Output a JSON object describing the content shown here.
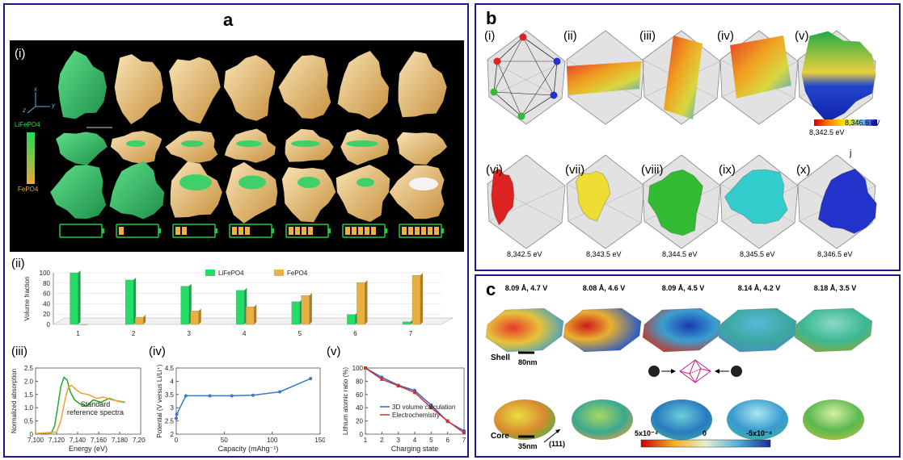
{
  "panel_a": {
    "label": "a",
    "sub_i": "(i)",
    "sub_ii": "(ii)",
    "sub_iii": "(iii)",
    "sub_iv": "(iv)",
    "sub_v": "(v)",
    "legend_top": "LiFePO4",
    "legend_bottom": "FePO4",
    "axes_x": "x",
    "axes_y": "y",
    "axes_z": "z",
    "battery_fill": [
      0,
      1,
      2,
      3,
      4,
      5,
      6
    ],
    "battery_segments": 6
  },
  "chart_ii": {
    "type": "bar",
    "categories": [
      "1",
      "2",
      "3",
      "4",
      "5",
      "6",
      "7"
    ],
    "ylabel": "Volume fraction",
    "yticks": [
      "0",
      "20",
      "40",
      "60",
      "80",
      "100"
    ],
    "ylim": [
      0,
      100
    ],
    "series": [
      {
        "name": "LiFePO4",
        "color": "#22dd66",
        "values": [
          100,
          86,
          74,
          66,
          44,
          19,
          5
        ]
      },
      {
        "name": "FePO4",
        "color": "#e8b040",
        "values": [
          0,
          14,
          26,
          34,
          56,
          81,
          95
        ]
      }
    ]
  },
  "chart_iii": {
    "type": "line",
    "xlabel": "Energy (eV)",
    "ylabel": "Normalized absorption",
    "xticks": [
      "7,100",
      "7,120",
      "7,140",
      "7,160",
      "7,180",
      "7,200"
    ],
    "yticks": [
      "0",
      "0.5",
      "1.0",
      "1.5",
      "2.0",
      "2.5"
    ],
    "xlim": [
      7100,
      7200
    ],
    "ylim": [
      0,
      2.5
    ],
    "annotation_line1": "Standard",
    "annotation_line2": "reference spectra",
    "series": [
      {
        "color": "#22aa22",
        "x": [
          7100,
          7115,
          7118,
          7121,
          7124,
          7127,
          7130,
          7133,
          7137,
          7142,
          7148,
          7155,
          7162,
          7170,
          7178,
          7185
        ],
        "y": [
          0.02,
          0.05,
          0.3,
          1.0,
          1.8,
          2.15,
          2.05,
          1.6,
          1.3,
          1.15,
          1.05,
          1.3,
          1.2,
          1.35,
          1.25,
          1.2
        ]
      },
      {
        "color": "#f0a030",
        "x": [
          7100,
          7120,
          7124,
          7128,
          7131,
          7134,
          7138,
          7143,
          7150,
          7158,
          7165,
          7172,
          7180,
          7185
        ],
        "y": [
          0.02,
          0.08,
          0.5,
          1.3,
          1.75,
          1.85,
          1.7,
          1.55,
          1.5,
          1.35,
          1.4,
          1.3,
          1.25,
          1.22
        ]
      }
    ]
  },
  "chart_iv": {
    "type": "line",
    "xlabel": "Capacity (mAhg⁻¹)",
    "ylabel": "Potential (V versus Li/Li⁺)",
    "xticks": [
      "0",
      "50",
      "100",
      "150"
    ],
    "yticks": [
      "2",
      "2.5",
      "3",
      "3.5",
      "4",
      "4.5"
    ],
    "xlim": [
      0,
      150
    ],
    "ylim": [
      2,
      4.5
    ],
    "x": [
      0,
      0.5,
      10,
      35,
      58,
      80,
      108,
      140
    ],
    "y": [
      2.6,
      2.75,
      3.45,
      3.45,
      3.45,
      3.47,
      3.6,
      4.1
    ]
  },
  "chart_v": {
    "type": "line",
    "xlabel": "Charging state",
    "ylabel": "Lithium atomic ratio (%)",
    "xticks": [
      "1",
      "2",
      "3",
      "4",
      "5",
      "6",
      "7"
    ],
    "yticks": [
      "0",
      "20",
      "40",
      "60",
      "80",
      "100"
    ],
    "xlim": [
      1,
      7
    ],
    "ylim": [
      0,
      100
    ],
    "series": [
      {
        "name": "3D volume calculation",
        "color": "#3366cc",
        "x": [
          1,
          2,
          3,
          4,
          5,
          6,
          7
        ],
        "y": [
          100,
          86,
          74,
          66,
          44,
          19,
          5
        ]
      },
      {
        "name": "Electrochemistry",
        "color": "#cc3333",
        "x": [
          1,
          2,
          3,
          4,
          5,
          6,
          7
        ],
        "y": [
          100,
          83,
          73,
          63,
          40,
          20,
          2
        ]
      }
    ]
  },
  "panel_b": {
    "label": "b",
    "subs": [
      "(i)",
      "(ii)",
      "(iii)",
      "(iv)",
      "(v)",
      "(vi)",
      "(vii)",
      "(viii)",
      "(ix)",
      "(x)"
    ],
    "colorbar_min": "8,342.5 eV",
    "colorbar_max": "8,346.6 eV",
    "stray_mark": "j",
    "energies": [
      "8,342.5 eV",
      "8,343.5 eV",
      "8,344.5 eV",
      "8,345.5 eV",
      "8,346.5 eV"
    ],
    "iso_colors": [
      "#dd2222",
      "#eedd33",
      "#33bb33",
      "#33cccc",
      "#2233cc"
    ]
  },
  "panel_c": {
    "label": "c",
    "titles": [
      "8.09 Å, 4.7 V",
      "8.08 Å, 4.6 V",
      "8.09 Å, 4.5 V",
      "8.14 Å, 4.2 V",
      "8.18 Å, 3.5 V"
    ],
    "shell_label": "Shell",
    "core_label": "Core",
    "shell_scale": "80nm",
    "core_scale": "35nm",
    "direction": "(111)",
    "cb_min": "5x10⁻⁴",
    "cb_mid": "0",
    "cb_max": "-5x10⁻⁴"
  }
}
